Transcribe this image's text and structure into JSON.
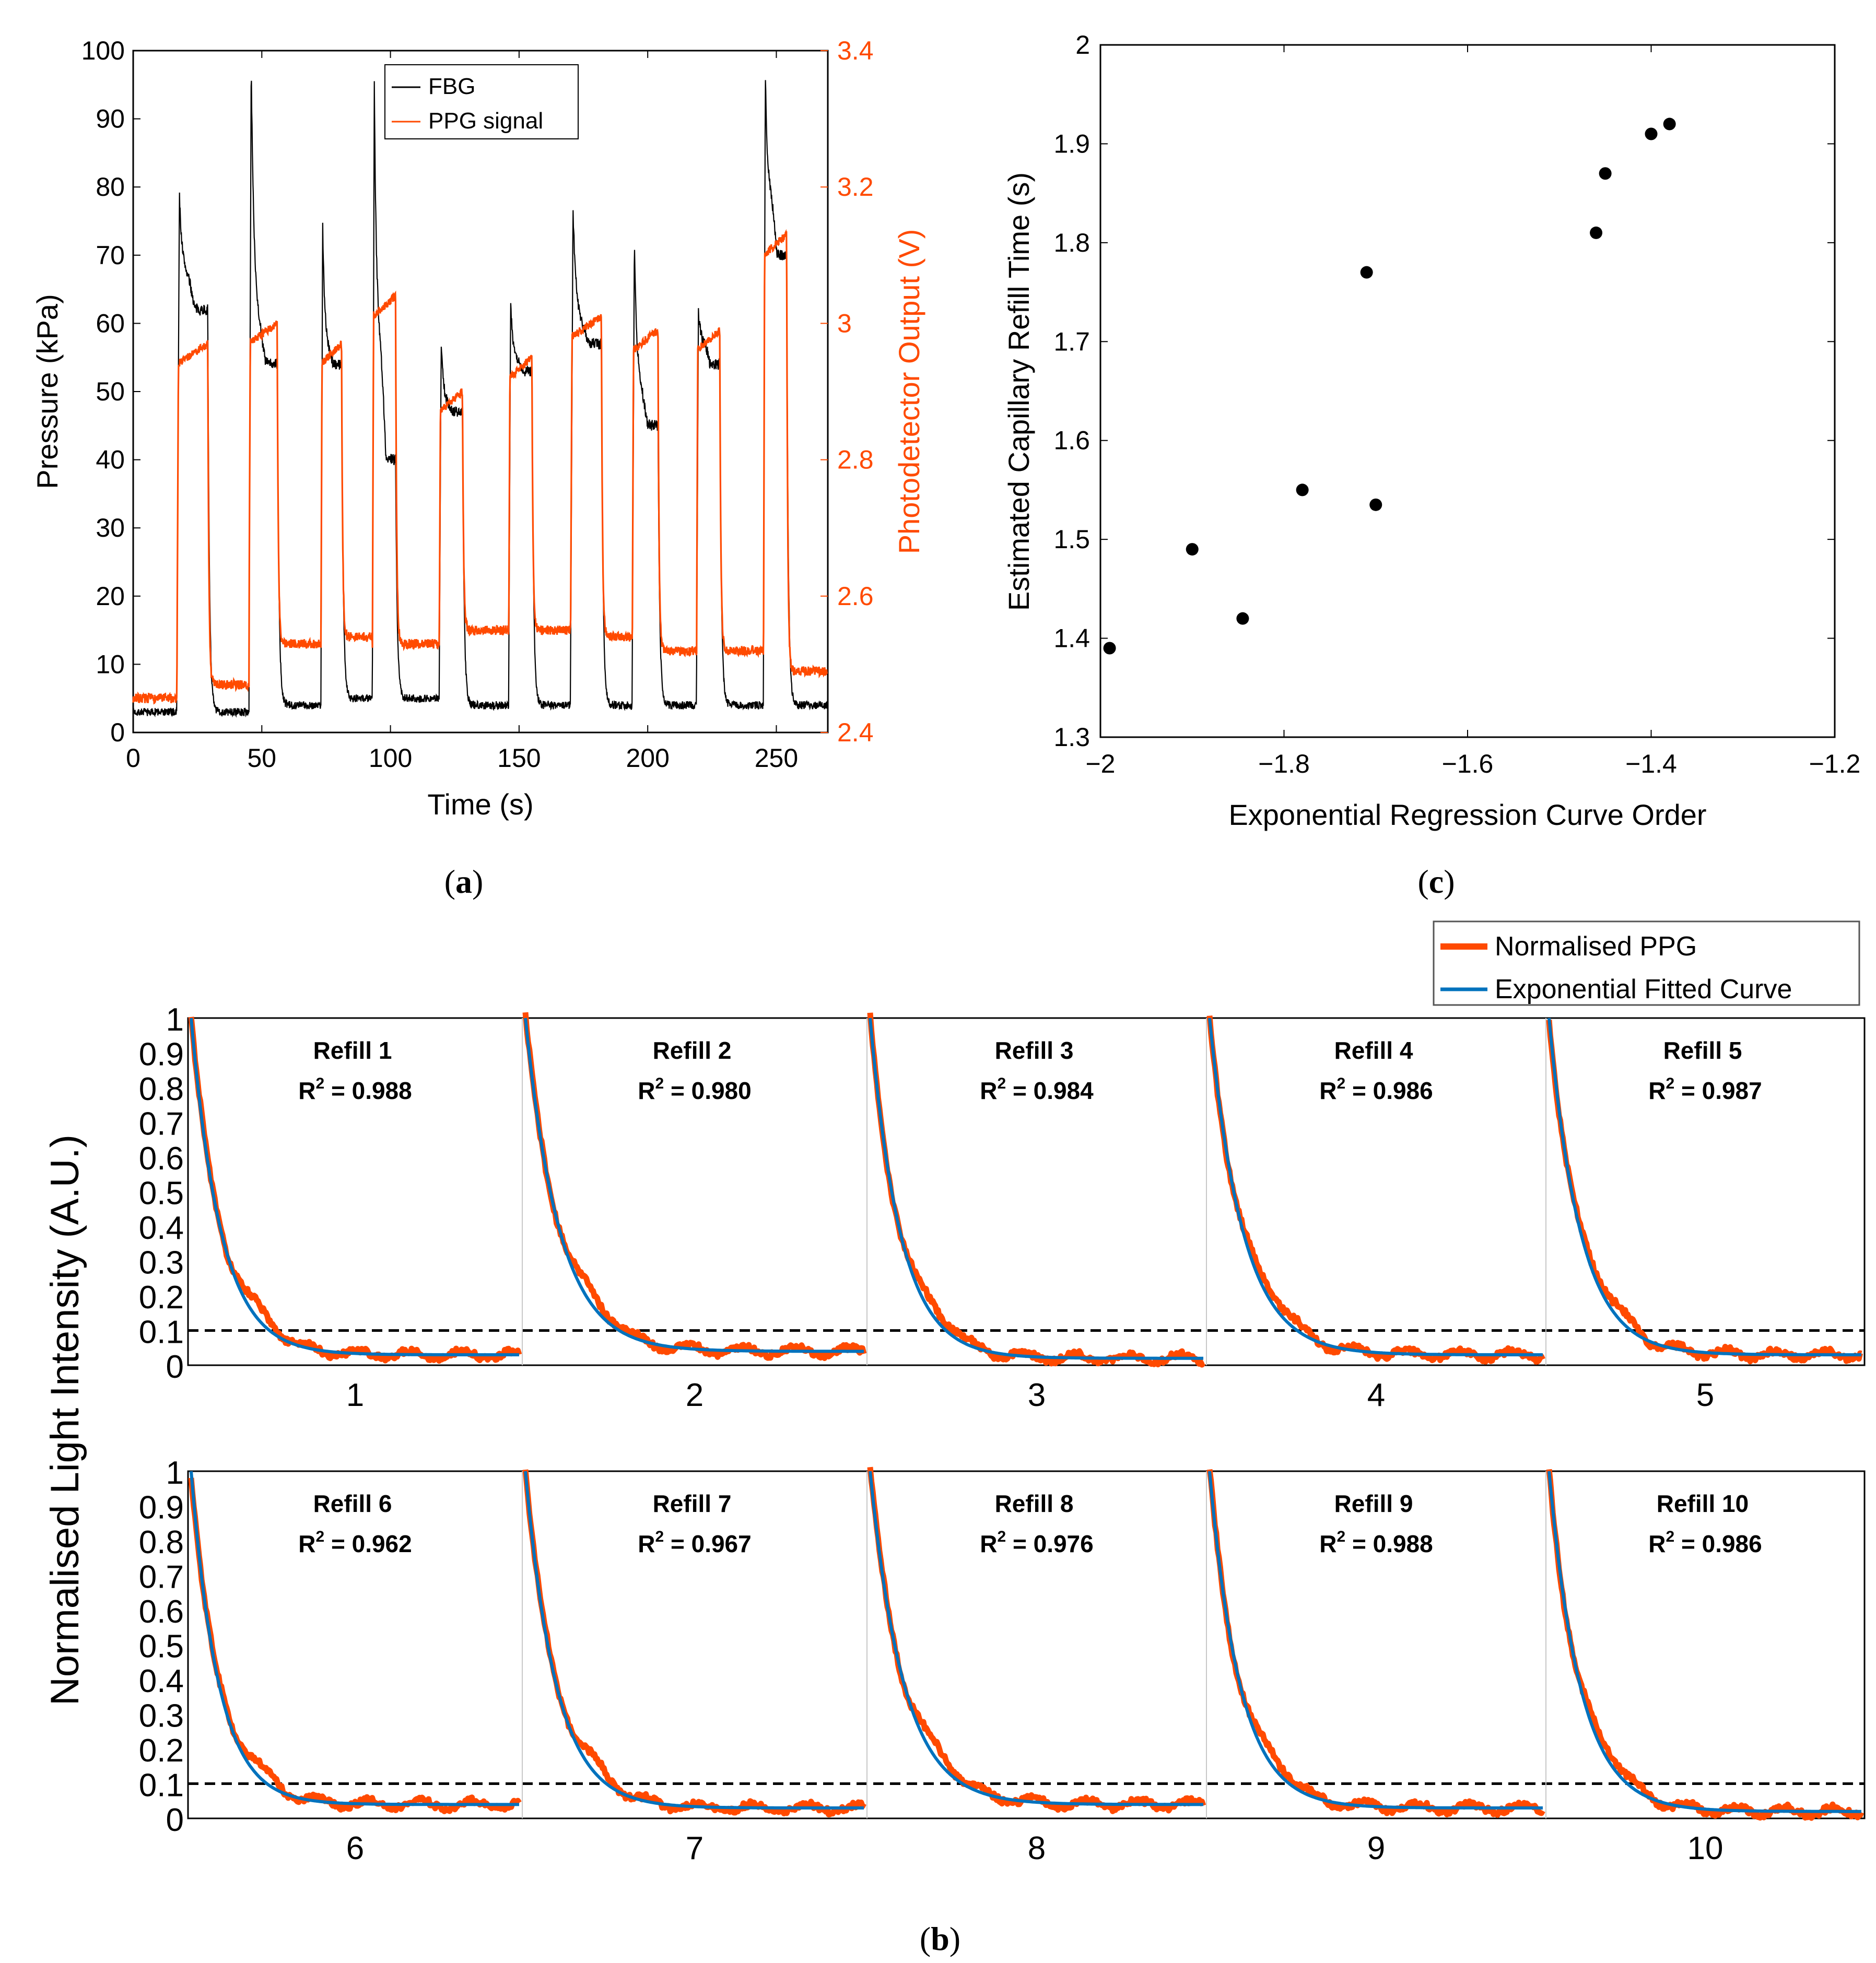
{
  "colors": {
    "fbg": "#000000",
    "ppg": "#ff4a00",
    "fit": "#0072bd",
    "ppgAxis": "#ff4a00"
  },
  "panel_a": {
    "caption": "a",
    "xlabel": "Time (s)",
    "ylabel_left": "Pressure (kPa)",
    "ylabel_right": "Photodetector Output (V)",
    "legend": {
      "fbg": "FBG",
      "ppg": "PPG signal"
    }
  },
  "panel_c": {
    "caption": "c",
    "xlabel": "Exponential Regression Curve Order",
    "ylabel": "Estimated Capillary Refill Time (s)"
  },
  "panel_b": {
    "caption": "b",
    "ylabel": "Normalised Light Intensity (A.U.)",
    "legend": {
      "ppg": "Normalised PPG",
      "fit": "Exponential Fitted Curve"
    },
    "threshold": 0.1,
    "refills": [
      {
        "label": "Refill 1",
        "r2_prefix": "R",
        "r2_sup": "2",
        "r2_value": " =  0.988",
        "tick": "1"
      },
      {
        "label": "Refill 2",
        "r2_prefix": "R",
        "r2_sup": "2",
        "r2_value": " = 0.980",
        "tick": "2"
      },
      {
        "label": "Refill 3",
        "r2_prefix": "R",
        "r2_sup": "2",
        "r2_value": " = 0.984",
        "tick": "3"
      },
      {
        "label": "Refill 4",
        "r2_prefix": "R",
        "r2_sup": "2",
        "r2_value": " = 0.986",
        "tick": "4"
      },
      {
        "label": "Refill 5",
        "r2_prefix": "R",
        "r2_sup": "2",
        "r2_value": " = 0.987",
        "tick": "5"
      },
      {
        "label": "Refill 6",
        "r2_prefix": "R",
        "r2_sup": "2",
        "r2_value": " = 0.962",
        "tick": "6"
      },
      {
        "label": "Refill 7",
        "r2_prefix": "R",
        "r2_sup": "2",
        "r2_value": " = 0.967",
        "tick": "7"
      },
      {
        "label": "Refill 8",
        "r2_prefix": "R",
        "r2_sup": "2",
        "r2_value": " = 0.976",
        "tick": "8"
      },
      {
        "label": "Refill 9",
        "r2_prefix": "R",
        "r2_sup": "2",
        "r2_value": " = 0.988",
        "tick": "9"
      },
      {
        "label": "Refill 10",
        "r2_prefix": "R",
        "r2_sup": "2",
        "r2_value": " = 0.986",
        "tick": "10"
      }
    ]
  },
  "chart_data": [
    {
      "type": "line",
      "title": "(a)",
      "xlabel": "Time (s)",
      "ylabel": "Pressure (kPa)",
      "y2label": "Photodetector Output (V)",
      "xlim": [
        0,
        270
      ],
      "ylim": [
        0,
        100
      ],
      "y2lim": [
        2.4,
        3.4
      ],
      "xticks": [
        0,
        50,
        100,
        150,
        200,
        250
      ],
      "yticks": [
        0,
        10,
        20,
        30,
        40,
        50,
        60,
        70,
        80,
        90,
        100
      ],
      "y2ticks": [
        "2.4",
        "2.6",
        "2.8",
        "3",
        "3.2",
        "3.4"
      ],
      "legend_position": "top-center",
      "pulses": [
        {
          "start": 17,
          "end": 29,
          "fbg_peak": 79,
          "fbg_mid": 68,
          "fbg_end": 62,
          "fbg_base": 3,
          "ppg_plateau": 2.96,
          "ppg_base": 2.47
        },
        {
          "start": 45,
          "end": 56,
          "fbg_peak": 98,
          "fbg_mid": 60,
          "fbg_end": 54,
          "fbg_base": 4,
          "ppg_plateau": 2.99,
          "ppg_base": 2.53
        },
        {
          "start": 73,
          "end": 81,
          "fbg_peak": 75,
          "fbg_mid": 56,
          "fbg_end": 54,
          "fbg_base": 5,
          "ppg_plateau": 2.96,
          "ppg_base": 2.54
        },
        {
          "start": 93,
          "end": 102,
          "fbg_peak": 96,
          "fbg_mid": 60,
          "fbg_end": 40,
          "fbg_base": 5,
          "ppg_plateau": 3.03,
          "ppg_base": 2.53
        },
        {
          "start": 119,
          "end": 128,
          "fbg_peak": 57,
          "fbg_mid": 48,
          "fbg_end": 47,
          "fbg_base": 4,
          "ppg_plateau": 2.89,
          "ppg_base": 2.55
        },
        {
          "start": 146,
          "end": 155,
          "fbg_peak": 63,
          "fbg_mid": 55,
          "fbg_end": 53,
          "fbg_base": 4,
          "ppg_plateau": 2.94,
          "ppg_base": 2.55
        },
        {
          "start": 170,
          "end": 182,
          "fbg_peak": 77,
          "fbg_mid": 60,
          "fbg_end": 57,
          "fbg_base": 4,
          "ppg_plateau": 3.0,
          "ppg_base": 2.54
        },
        {
          "start": 194,
          "end": 204,
          "fbg_peak": 72,
          "fbg_mid": 51,
          "fbg_end": 45,
          "fbg_base": 4,
          "ppg_plateau": 2.98,
          "ppg_base": 2.52
        },
        {
          "start": 219,
          "end": 228,
          "fbg_peak": 62,
          "fbg_mid": 58,
          "fbg_end": 54,
          "fbg_base": 4,
          "ppg_plateau": 2.98,
          "ppg_base": 2.52
        },
        {
          "start": 245,
          "end": 254,
          "fbg_peak": 97,
          "fbg_mid": 80,
          "fbg_end": 70,
          "fbg_base": 4,
          "ppg_plateau": 3.12,
          "ppg_base": 2.49
        }
      ],
      "initial_baseline": {
        "fbg": 3,
        "ppg": 2.45
      },
      "series": [
        {
          "name": "FBG",
          "axis": "left",
          "color": "#000000"
        },
        {
          "name": "PPG signal",
          "axis": "right",
          "color": "#ff4a00"
        }
      ]
    },
    {
      "type": "scatter",
      "title": "(c)",
      "xlabel": "Exponential Regression Curve Order",
      "ylabel": "Estimated Capillary Refill Time (s)",
      "xlim": [
        -2,
        -1.2
      ],
      "ylim": [
        1.3,
        2.0
      ],
      "xticks": [
        "-2",
        "-1.8",
        "-1.6",
        "-1.4",
        "-1.2"
      ],
      "yticks": [
        "1.3",
        "1.4",
        "1.5",
        "1.6",
        "1.7",
        "1.8",
        "1.9",
        "2"
      ],
      "x": [
        -1.99,
        -1.9,
        -1.845,
        -1.78,
        -1.71,
        -1.7,
        -1.46,
        -1.45,
        -1.4,
        -1.38
      ],
      "y": [
        1.39,
        1.49,
        1.42,
        1.55,
        1.77,
        1.535,
        1.81,
        1.87,
        1.91,
        1.92
      ]
    },
    {
      "type": "line",
      "title": "(b)",
      "ylabel": "Normalised Light Intensity (A.U.)",
      "ylim": [
        0,
        1
      ],
      "yticks": [
        "0",
        "0.1",
        "0.2",
        "0.3",
        "0.4",
        "0.5",
        "0.6",
        "0.7",
        "0.8",
        "0.9",
        "1"
      ],
      "categories": [
        "1",
        "2",
        "3",
        "4",
        "5",
        "6",
        "7",
        "8",
        "9",
        "10"
      ],
      "threshold": 0.1,
      "r2": [
        0.988,
        0.98,
        0.984,
        0.986,
        0.987,
        0.962,
        0.967,
        0.976,
        0.988,
        0.986
      ],
      "decay_rate": [
        11,
        10,
        11,
        10,
        10,
        12,
        11,
        10,
        11,
        10
      ],
      "final_level": [
        0.03,
        0.04,
        0.02,
        0.03,
        0.03,
        0.04,
        0.03,
        0.04,
        0.03,
        0.02
      ],
      "series": [
        {
          "name": "Normalised PPG",
          "color": "#ff4a00"
        },
        {
          "name": "Exponential Fitted Curve",
          "color": "#0072bd"
        }
      ]
    }
  ]
}
